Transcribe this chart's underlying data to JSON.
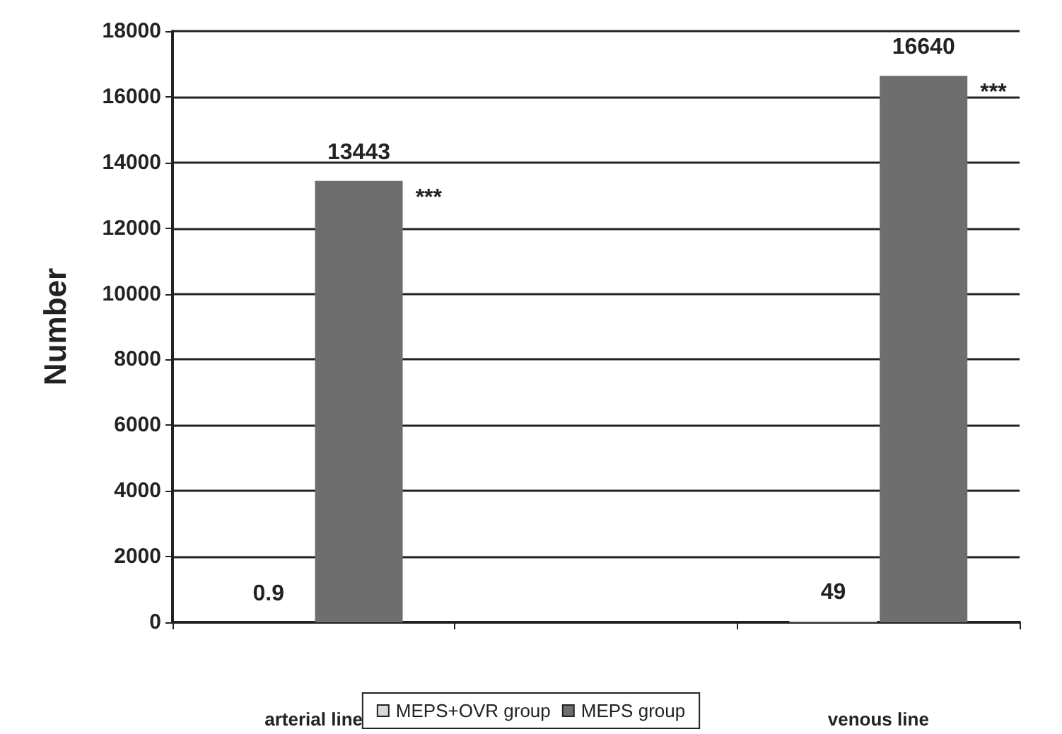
{
  "chart_data": {
    "type": "bar",
    "ylabel": "Number",
    "categories": [
      "arterial line",
      null,
      "venous line"
    ],
    "series": [
      {
        "name": "MEPS+OVR group",
        "color": "#d9d9d9",
        "values": [
          0.9,
          null,
          49
        ]
      },
      {
        "name": "MEPS group",
        "color": "#6e6e6e",
        "values": [
          13443,
          null,
          16640
        ]
      }
    ],
    "ylim": [
      0,
      18000
    ],
    "yticks": [
      0,
      2000,
      4000,
      6000,
      8000,
      10000,
      12000,
      14000,
      16000,
      18000
    ],
    "grid": "y",
    "legend": "bottom",
    "data_labels": true,
    "annotations": [
      "***",
      "***"
    ]
  }
}
